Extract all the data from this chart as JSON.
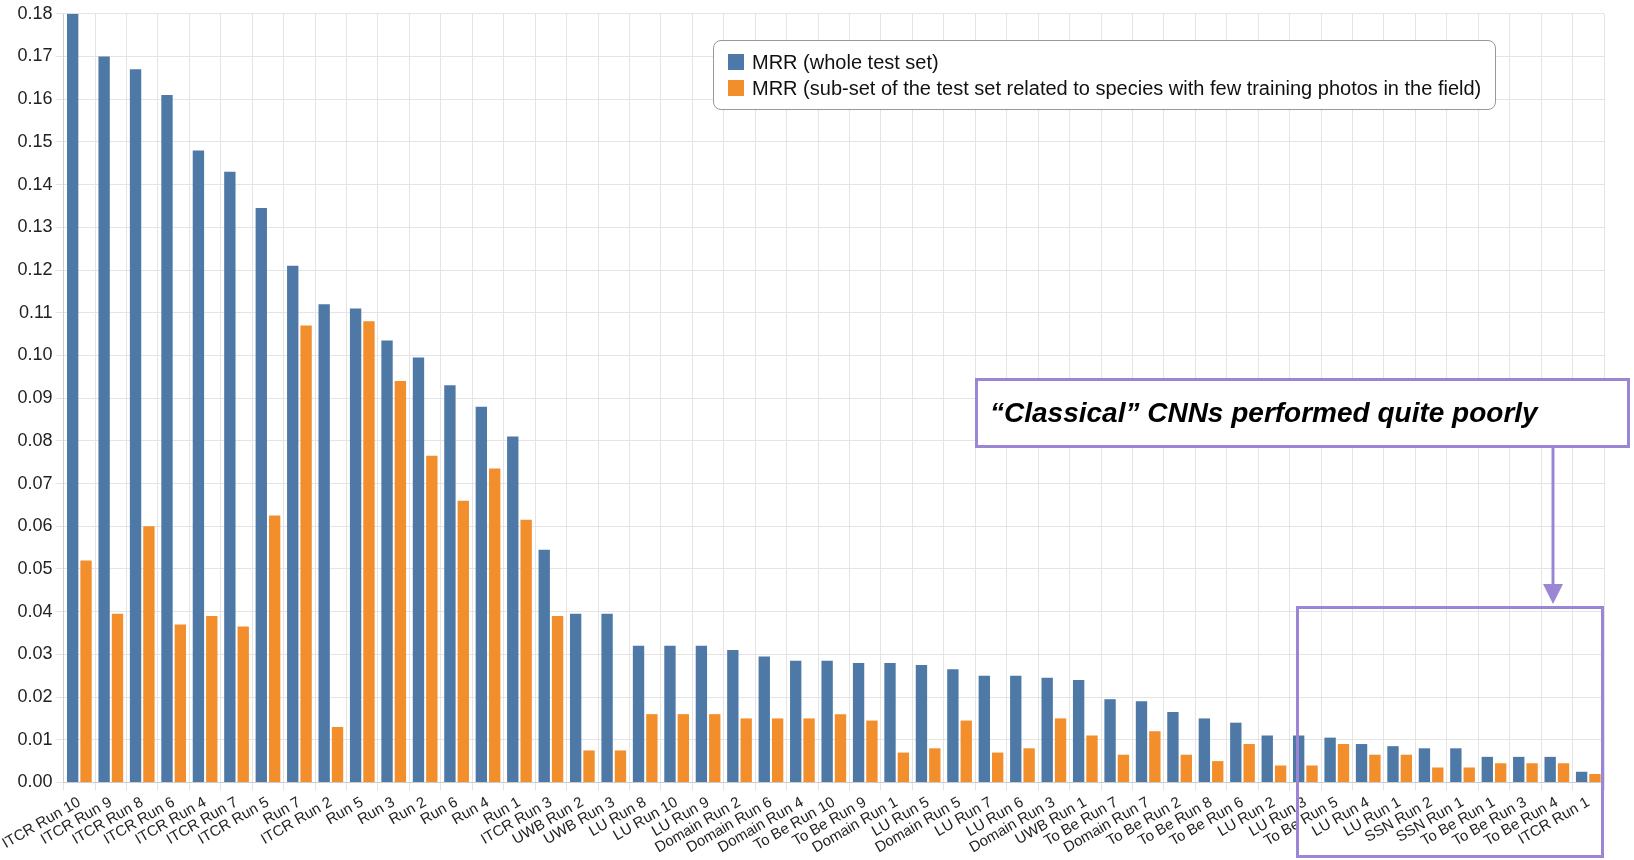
{
  "chart_data": {
    "type": "bar",
    "categories": [
      "ITCR Run 10",
      "ITCR Run 9",
      "ITCR Run 8",
      "ITCR Run 6",
      "ITCR Run 4",
      "ITCR Run 7",
      "ITCR Run 5",
      "Run 7",
      "ITCR Run 2",
      "Run 5",
      "Run 3",
      "Run 2",
      "Run 6",
      "Run 4",
      "Run 1",
      "ITCR Run 3",
      "UWB Run 2",
      "UWB Run 3",
      "LU Run 8",
      "LU Run 10",
      "LU Run 9",
      "Domain Run 2",
      "Domain Run 6",
      "Domain Run 4",
      "To Be Run 10",
      "To Be Run 9",
      "Domain Run 1",
      "LU Run 5",
      "Domain Run 5",
      "LU Run 7",
      "LU Run 6",
      "Domain Run 3",
      "UWB Run 1",
      "To Be Run 7",
      "Domain Run 7",
      "To Be Run 2",
      "To Be Run 8",
      "To Be Run 6",
      "LU Run 2",
      "LU Run 3",
      "To Be Run 5",
      "LU Run 4",
      "LU Run 1",
      "SSN Run 2",
      "SSN Run 1",
      "To Be Run 1",
      "To Be Run 3",
      "To Be Run 4",
      "ITCR Run 1"
    ],
    "series": [
      {
        "name": "MRR (whole test set)",
        "color": "#4e79a7",
        "values": [
          0.18,
          0.17,
          0.167,
          0.161,
          0.148,
          0.143,
          0.1345,
          0.121,
          0.112,
          0.111,
          0.1035,
          0.0995,
          0.093,
          0.088,
          0.081,
          0.0545,
          0.0395,
          0.0395,
          0.032,
          0.032,
          0.032,
          0.031,
          0.0295,
          0.0285,
          0.0285,
          0.028,
          0.028,
          0.0275,
          0.0265,
          0.025,
          0.025,
          0.0245,
          0.024,
          0.0195,
          0.019,
          0.0165,
          0.015,
          0.014,
          0.011,
          0.011,
          0.0105,
          0.009,
          0.0085,
          0.008,
          0.008,
          0.006,
          0.006,
          0.006,
          0.0025
        ]
      },
      {
        "name": "MRR (sub-set of the test set related to species with few training photos in the field)",
        "color": "#f28e2b",
        "values": [
          0.052,
          0.0395,
          0.06,
          0.037,
          0.039,
          0.0365,
          0.0625,
          0.107,
          0.013,
          0.108,
          0.094,
          0.0765,
          0.066,
          0.0735,
          0.0615,
          0.039,
          0.0075,
          0.0075,
          0.016,
          0.016,
          0.016,
          0.015,
          0.015,
          0.015,
          0.016,
          0.0145,
          0.007,
          0.008,
          0.0145,
          0.007,
          0.008,
          0.015,
          0.011,
          0.0065,
          0.012,
          0.0065,
          0.005,
          0.009,
          0.004,
          0.004,
          0.009,
          0.0065,
          0.0065,
          0.0035,
          0.0035,
          0.0045,
          0.0045,
          0.0045,
          0.002
        ]
      }
    ],
    "ylim": [
      0,
      0.18
    ],
    "yticks": [
      {
        "value": 0,
        "label": "0.00"
      },
      {
        "value": 0.01,
        "label": "0.01"
      },
      {
        "value": 0.02,
        "label": "0.02"
      },
      {
        "value": 0.03,
        "label": "0.03"
      },
      {
        "value": 0.04,
        "label": "0.04"
      },
      {
        "value": 0.05,
        "label": "0.05"
      },
      {
        "value": 0.06,
        "label": "0.06"
      },
      {
        "value": 0.07,
        "label": "0.07"
      },
      {
        "value": 0.08,
        "label": "0.08"
      },
      {
        "value": 0.09,
        "label": "0.09"
      },
      {
        "value": 0.1,
        "label": "0.10"
      },
      {
        "value": 0.11,
        "label": "0.11"
      },
      {
        "value": 0.12,
        "label": "0.12"
      },
      {
        "value": 0.13,
        "label": "0.13"
      },
      {
        "value": 0.14,
        "label": "0.14"
      },
      {
        "value": 0.15,
        "label": "0.15"
      },
      {
        "value": 0.16,
        "label": "0.16"
      },
      {
        "value": 0.17,
        "label": "0.17"
      },
      {
        "value": 0.18,
        "label": "0.18"
      }
    ],
    "grid": true,
    "legend": "top right",
    "annotations": [
      "“Classical” CNNs performed quite poorly"
    ]
  }
}
